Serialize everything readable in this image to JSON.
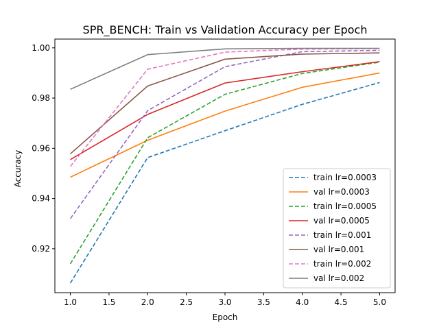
{
  "chart_data": {
    "type": "line",
    "title": "SPR_BENCH: Train vs Validation Accuracy per Epoch",
    "xlabel": "Epoch",
    "ylabel": "Accuracy",
    "xlim": [
      0.8,
      5.2
    ],
    "ylim": [
      0.9025,
      1.0035
    ],
    "xticks": [
      "1.0",
      "1.5",
      "2.0",
      "2.5",
      "3.0",
      "3.5",
      "4.0",
      "4.5",
      "5.0"
    ],
    "yticks": [
      "0.92",
      "0.94",
      "0.96",
      "0.98",
      "1.00"
    ],
    "grid": false,
    "legend_position": "lower-right",
    "x": [
      1,
      2,
      3,
      4,
      5
    ],
    "series": [
      {
        "name": "train lr=0.0003",
        "color": "#1f77b4",
        "dashed": true,
        "values": [
          0.9063,
          0.9563,
          0.967,
          0.9775,
          0.9862
        ]
      },
      {
        "name": "val lr=0.0003",
        "color": "#ff7f0e",
        "dashed": false,
        "values": [
          0.9485,
          0.9632,
          0.9748,
          0.9843,
          0.99
        ]
      },
      {
        "name": "train lr=0.0005",
        "color": "#2ca02c",
        "dashed": true,
        "values": [
          0.914,
          0.9642,
          0.9815,
          0.9898,
          0.9943
        ]
      },
      {
        "name": "val lr=0.0005",
        "color": "#d62728",
        "dashed": false,
        "values": [
          0.9555,
          0.9735,
          0.986,
          0.9905,
          0.9945
        ]
      },
      {
        "name": "train lr=0.001",
        "color": "#9467bd",
        "dashed": true,
        "values": [
          0.932,
          0.975,
          0.9925,
          0.9985,
          0.999
        ]
      },
      {
        "name": "val lr=0.001",
        "color": "#8c564b",
        "dashed": false,
        "values": [
          0.9578,
          0.9848,
          0.9955,
          0.9975,
          0.998
        ]
      },
      {
        "name": "train lr=0.002",
        "color": "#e377c2",
        "dashed": true,
        "values": [
          0.9528,
          0.9915,
          0.9983,
          0.9995,
          0.9997
        ]
      },
      {
        "name": "val lr=0.002",
        "color": "#7f7f7f",
        "dashed": false,
        "values": [
          0.9835,
          0.9973,
          0.9996,
          0.9998,
          0.9998
        ]
      }
    ]
  }
}
